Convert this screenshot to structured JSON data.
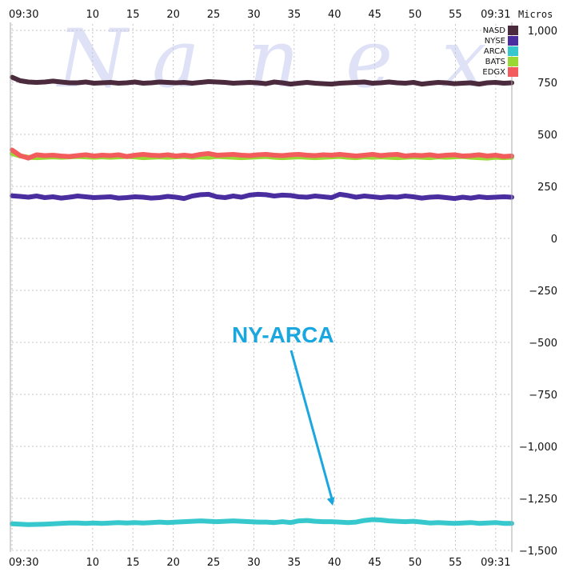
{
  "chart_data": {
    "type": "line",
    "unit_label": "Micros",
    "watermark_letters": [
      "N",
      "a",
      "n",
      "e",
      "x"
    ],
    "x_ticks": [
      "09:30",
      "10",
      "15",
      "20",
      "25",
      "30",
      "35",
      "40",
      "45",
      "50",
      "55",
      "09:31"
    ],
    "x_tick_seconds": [
      0,
      10,
      15,
      20,
      25,
      30,
      35,
      40,
      45,
      50,
      55,
      60
    ],
    "x_range_seconds": [
      0,
      62
    ],
    "y_ticks": [
      "1,000",
      "750",
      "500",
      "250",
      "0",
      "−250",
      "−500",
      "−750",
      "−1,000",
      "−1,250",
      "−1,500"
    ],
    "y_tick_values": [
      1000,
      750,
      500,
      250,
      0,
      -250,
      -500,
      -750,
      -1000,
      -1250,
      -1500
    ],
    "ylim": [
      -1500,
      1000
    ],
    "grid": true,
    "legend_position": "top-right",
    "series": [
      {
        "name": "NASD",
        "color": "#4a2a3c",
        "values": [
          775,
          758,
          752,
          750,
          752,
          756,
          752,
          748,
          748,
          752,
          746,
          748,
          750,
          746,
          748,
          752,
          746,
          748,
          752,
          750,
          748,
          750,
          746,
          750,
          754,
          752,
          750,
          746,
          748,
          750,
          748,
          744,
          752,
          748,
          742,
          746,
          750,
          746,
          744,
          742,
          746,
          748,
          750,
          752,
          746,
          748,
          752,
          748,
          746,
          750,
          742,
          746,
          750,
          748,
          744,
          746,
          748,
          742,
          748,
          750,
          746,
          748
        ]
      },
      {
        "name": "NYSE",
        "color": "#4a2ea0",
        "values": [
          205,
          202,
          198,
          204,
          196,
          200,
          194,
          198,
          204,
          200,
          196,
          198,
          200,
          194,
          196,
          200,
          198,
          194,
          196,
          202,
          198,
          192,
          204,
          210,
          212,
          200,
          196,
          204,
          198,
          208,
          212,
          210,
          204,
          208,
          206,
          200,
          198,
          204,
          200,
          196,
          212,
          206,
          198,
          204,
          200,
          196,
          200,
          198,
          204,
          200,
          194,
          198,
          200,
          196,
          192,
          198,
          194,
          200,
          196,
          198,
          200,
          198
        ]
      },
      {
        "name": "ARCA",
        "color": "#36c8cc",
        "values": [
          -1372,
          -1374,
          -1376,
          -1375,
          -1374,
          -1372,
          -1370,
          -1368,
          -1368,
          -1370,
          -1368,
          -1370,
          -1368,
          -1366,
          -1368,
          -1366,
          -1368,
          -1366,
          -1364,
          -1366,
          -1364,
          -1362,
          -1360,
          -1358,
          -1360,
          -1362,
          -1360,
          -1358,
          -1360,
          -1362,
          -1364,
          -1364,
          -1366,
          -1362,
          -1366,
          -1358,
          -1356,
          -1360,
          -1362,
          -1362,
          -1364,
          -1366,
          -1364,
          -1356,
          -1352,
          -1354,
          -1358,
          -1360,
          -1362,
          -1360,
          -1364,
          -1368,
          -1366,
          -1368,
          -1370,
          -1368,
          -1366,
          -1370,
          -1368,
          -1366,
          -1370,
          -1370
        ]
      },
      {
        "name": "BATS",
        "color": "#9ad934",
        "values": [
          408,
          396,
          390,
          388,
          390,
          392,
          390,
          392,
          394,
          392,
          390,
          392,
          390,
          392,
          394,
          392,
          388,
          390,
          392,
          390,
          392,
          394,
          390,
          392,
          390,
          394,
          392,
          390,
          388,
          390,
          392,
          394,
          390,
          388,
          390,
          392,
          390,
          388,
          390,
          392,
          394,
          390,
          388,
          392,
          390,
          392,
          390,
          388,
          390,
          392,
          390,
          388,
          392,
          390,
          392,
          394,
          390,
          388,
          386,
          390,
          388,
          390
        ]
      },
      {
        "name": "EDGX",
        "color": "#f25c5c",
        "values": [
          425,
          398,
          386,
          402,
          398,
          400,
          396,
          394,
          398,
          402,
          396,
          400,
          398,
          402,
          394,
          400,
          404,
          400,
          398,
          402,
          396,
          400,
          396,
          404,
          408,
          400,
          402,
          404,
          400,
          398,
          402,
          404,
          400,
          398,
          402,
          404,
          400,
          398,
          402,
          400,
          404,
          400,
          396,
          400,
          404,
          398,
          402,
          404,
          396,
          400,
          398,
          402,
          396,
          400,
          402,
          396,
          398,
          402,
          396,
          400,
          394,
          396
        ]
      }
    ],
    "annotation": {
      "text": "NY-ARCA",
      "target_x_seconds": 39.8,
      "target_y_value": -1285
    }
  }
}
